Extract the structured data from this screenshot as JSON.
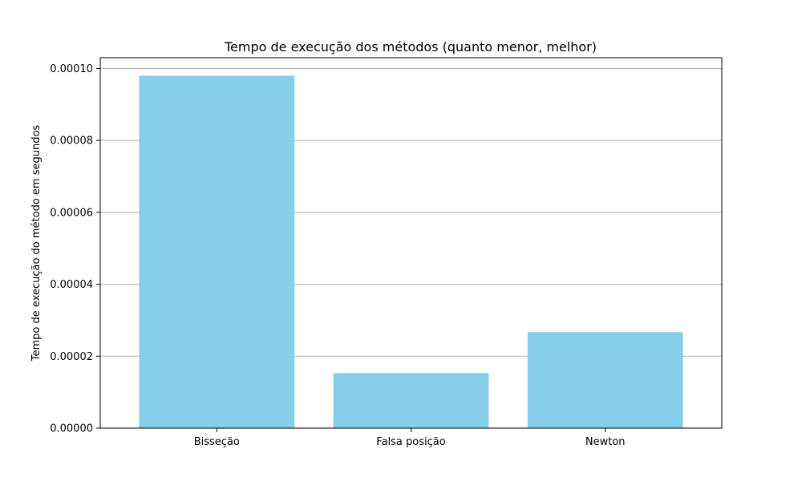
{
  "chart_data": {
    "type": "bar",
    "title": "Tempo de execução dos métodos (quanto menor, melhor)",
    "xlabel": "",
    "ylabel": "Tempo de execução do método em segundos",
    "categories": [
      "Bisseção",
      "Falsa posição",
      "Newton"
    ],
    "values": [
      9.8e-05,
      1.53e-05,
      2.67e-05
    ],
    "ylim": [
      0,
      0.000103
    ],
    "yticks": [
      0,
      2e-05,
      4e-05,
      6e-05,
      8e-05,
      0.0001
    ],
    "ytick_labels": [
      "0.00000",
      "0.00002",
      "0.00004",
      "0.00006",
      "0.00008",
      "0.00010"
    ],
    "grid": "y",
    "bar_color": "#87CEEB"
  }
}
